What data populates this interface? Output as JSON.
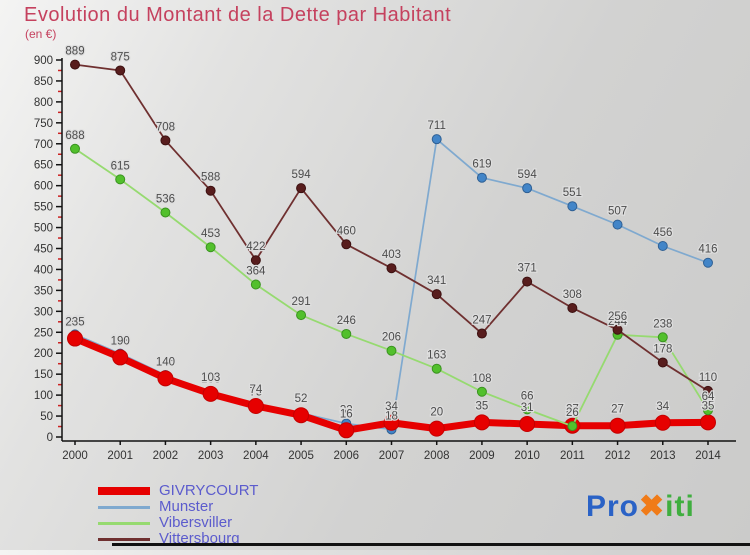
{
  "header": {
    "title": "Evolution du Montant de la Dette par Habitant",
    "subtitle": "(en €)",
    "title_color": "#c5415e"
  },
  "chart_data": {
    "type": "line",
    "x": [
      "2000",
      "2001",
      "2002",
      "2003",
      "2004",
      "2005",
      "2006",
      "2007",
      "2008",
      "2009",
      "2010",
      "2011",
      "2012",
      "2013",
      "2014"
    ],
    "series": [
      {
        "name": "GIVRYCOURT",
        "line_color": "#e60000",
        "dot_color": "#e60000",
        "dot_stroke": "#c40000",
        "line_width": 7,
        "dot_radius": 7.5,
        "values": [
          235,
          190,
          140,
          103,
          74,
          52,
          16,
          34,
          20,
          35,
          31,
          27,
          27,
          34,
          35
        ]
      },
      {
        "name": "Munster",
        "line_color": "#7fa9cf",
        "dot_color": "#4285c8",
        "dot_stroke": "#2f6094",
        "line_width": 1.7,
        "dot_radius": 4.5,
        "values": [
          245,
          199,
          148,
          106,
          75,
          57,
          32,
          18,
          711,
          619,
          594,
          551,
          507,
          456,
          416
        ]
      },
      {
        "name": "Vibersviller",
        "line_color": "#96da70",
        "dot_color": "#52c02c",
        "dot_stroke": "#3a9220",
        "line_width": 1.8,
        "dot_radius": 4.5,
        "values": [
          688,
          615,
          536,
          453,
          364,
          291,
          246,
          206,
          163,
          108,
          66,
          26,
          244,
          238,
          64
        ]
      },
      {
        "name": "Vittersbourg",
        "line_color": "#6f3030",
        "dot_color": "#581d1d",
        "dot_stroke": "#3d1111",
        "line_width": 1.8,
        "dot_radius": 4.5,
        "values": [
          889,
          875,
          708,
          588,
          422,
          594,
          460,
          403,
          341,
          247,
          371,
          308,
          256,
          178,
          110
        ]
      }
    ],
    "draw_order": [
      "Munster",
      "GIVRYCOURT",
      "Vibersviller",
      "Vittersbourg"
    ],
    "ylim": [
      0,
      900
    ],
    "ytick_major_step": 50,
    "ytick_minor_step": 25,
    "minor_tick_color": "#cc2222",
    "axis_color": "#111111",
    "tick_label_color": "#333333",
    "value_label_color": "#4d4d4d",
    "grid": false,
    "legend_position": "bottom-left",
    "title": "Evolution du Montant de la Dette par Habitant (en €)"
  },
  "legend": {
    "text_color": "#5c5ccd"
  },
  "logo": {
    "parts": [
      {
        "text": "Pro",
        "color": "#2a62c6"
      },
      {
        "text": "✖",
        "color": "#f07b18"
      },
      {
        "text": "iti",
        "color": "#3fae3f"
      }
    ]
  }
}
